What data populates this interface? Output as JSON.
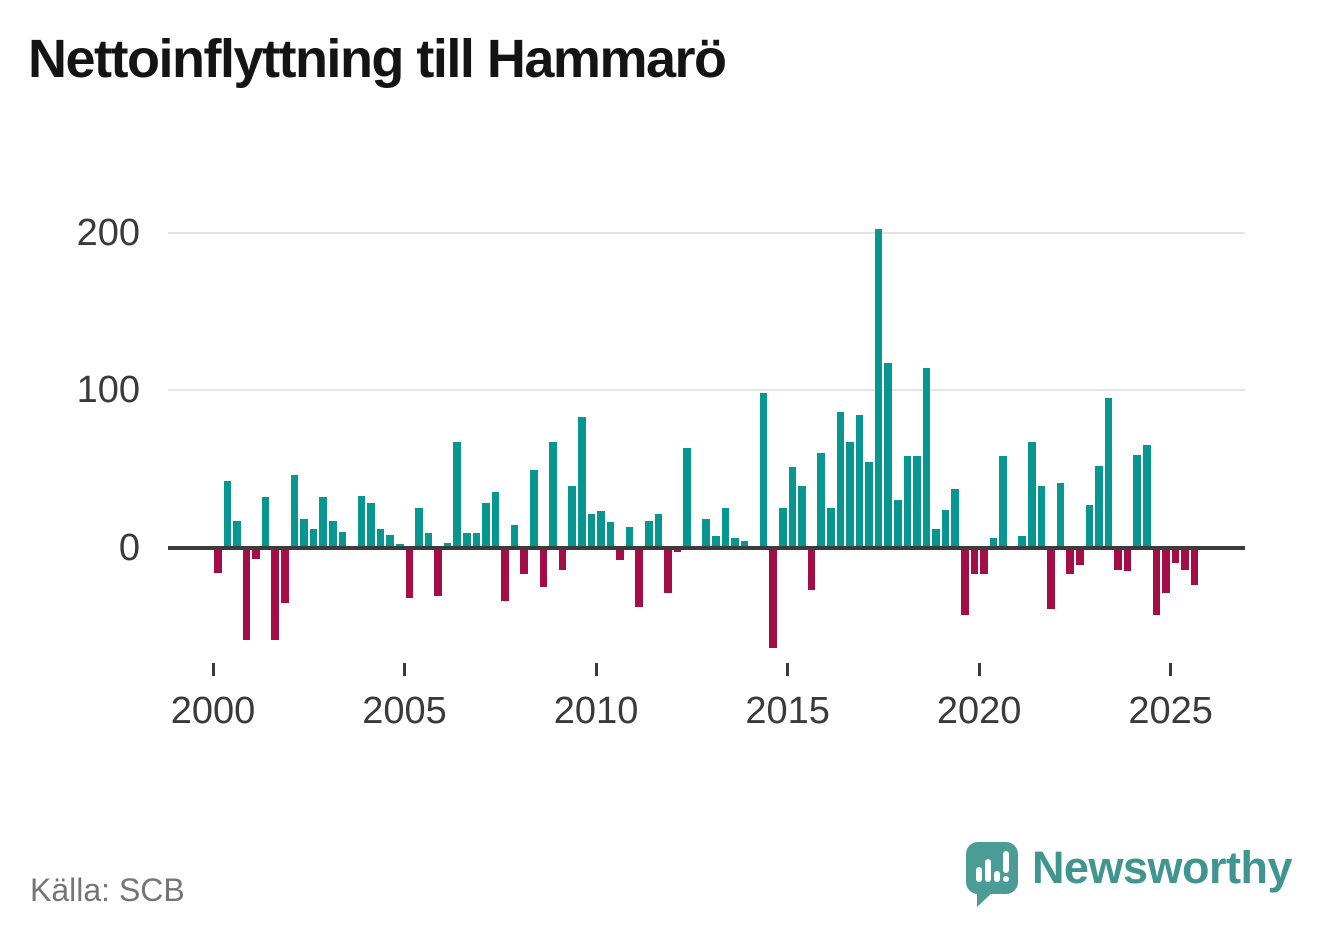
{
  "title": "Nettoinflyttning till Hammarö",
  "source": {
    "text": "Källa: SCB"
  },
  "logo": {
    "text": "Newsworthy",
    "icon": "speech-bubble-with-bar-chart-and-exclamation"
  },
  "colors": {
    "positive_bar": "#089690",
    "negative_bar": "#a40d46",
    "axis": "#3c3c3c",
    "grid": "#e4e4e4",
    "tick_label": "#3a3a3a",
    "title_text": "#141414",
    "source_text": "#757575",
    "logo_teal": "#3f958f"
  },
  "y_axis": {
    "tick_labels": [
      "0",
      "100",
      "200"
    ],
    "tick_values": [
      0,
      100,
      200
    ],
    "grid_values": [
      100,
      200
    ]
  },
  "x_axis": {
    "tick_labels": [
      "2000",
      "2005",
      "2010",
      "2015",
      "2020",
      "2025"
    ],
    "years_per_tick": 5
  },
  "chart_data": {
    "type": "bar",
    "title": "Nettoinflyttning till Hammarö",
    "xlabel": "",
    "ylabel": "",
    "legend": "none",
    "grid": "horizontal",
    "frequency": "quarterly",
    "start": "2000 Q1",
    "end": "2025 Q3",
    "ylim": [
      -70,
      210
    ],
    "positive_color": "#089690",
    "negative_color": "#a40d46",
    "values": [
      -16,
      42,
      17,
      -59,
      -7,
      32,
      -59,
      -35,
      46,
      18,
      12,
      32,
      17,
      10,
      0,
      33,
      28,
      12,
      8,
      2,
      -32,
      25,
      9,
      -31,
      3,
      67,
      9,
      9,
      28,
      35,
      -34,
      14,
      -17,
      49,
      -25,
      67,
      -14,
      39,
      83,
      21,
      23,
      16,
      -8,
      13,
      -38,
      17,
      21,
      -29,
      -3,
      63,
      0,
      18,
      7,
      25,
      6,
      4,
      0,
      98,
      -64,
      25,
      51,
      39,
      -27,
      60,
      25,
      86,
      67,
      84,
      54,
      202,
      117,
      30,
      58,
      58,
      114,
      12,
      24,
      37,
      -43,
      -17,
      -17,
      6,
      58,
      0,
      7,
      67,
      39,
      -39,
      41,
      -17,
      -11,
      27,
      52,
      95,
      -14,
      -15,
      59,
      65,
      -43,
      -29,
      -10,
      -14,
      -24
    ]
  }
}
